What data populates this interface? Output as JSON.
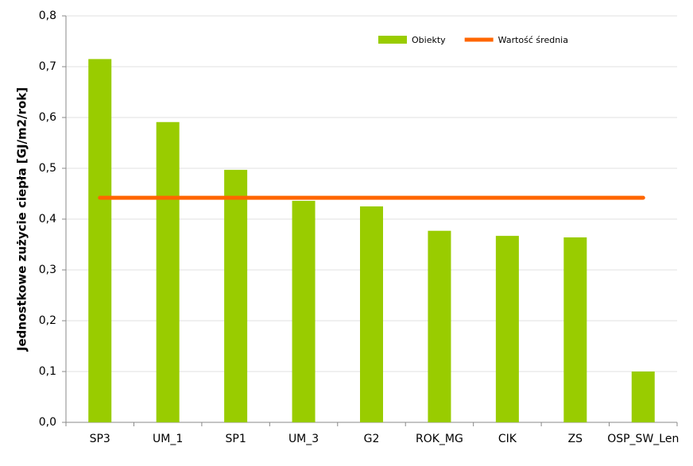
{
  "chart_data": {
    "type": "bar",
    "y_label": "Jednostkowe zużycie ciepła [GJ/m2/rok]",
    "categories": [
      "SP3",
      "UM_1",
      "SP1",
      "UM_3",
      "G2",
      "ROK_MG",
      "CIK",
      "ZS",
      "OSP_SW_Len"
    ],
    "series": [
      {
        "name": "Obiekty",
        "type": "bar",
        "color": "#99cc00",
        "values": [
          0.715,
          0.591,
          0.497,
          0.436,
          0.425,
          0.377,
          0.367,
          0.364,
          0.1
        ]
      },
      {
        "name": "Wartość średnia",
        "type": "line",
        "color": "#ff6600",
        "values": [
          0.442,
          0.442,
          0.442,
          0.442,
          0.442,
          0.442,
          0.442,
          0.442,
          0.442
        ]
      }
    ],
    "ylim": [
      0,
      0.8
    ],
    "yticks": [
      {
        "value": 0,
        "label": "0,0"
      },
      {
        "value": 0.1,
        "label": "0,1"
      },
      {
        "value": 0.2,
        "label": "0,2"
      },
      {
        "value": 0.3,
        "label": "0,3"
      },
      {
        "value": 0.4,
        "label": "0,4"
      },
      {
        "value": 0.5,
        "label": "0,5"
      },
      {
        "value": 0.6,
        "label": "0,6"
      },
      {
        "value": 0.7,
        "label": "0,7"
      },
      {
        "value": 0.8,
        "label": "0,8"
      }
    ],
    "grid": true,
    "legend": "top"
  }
}
